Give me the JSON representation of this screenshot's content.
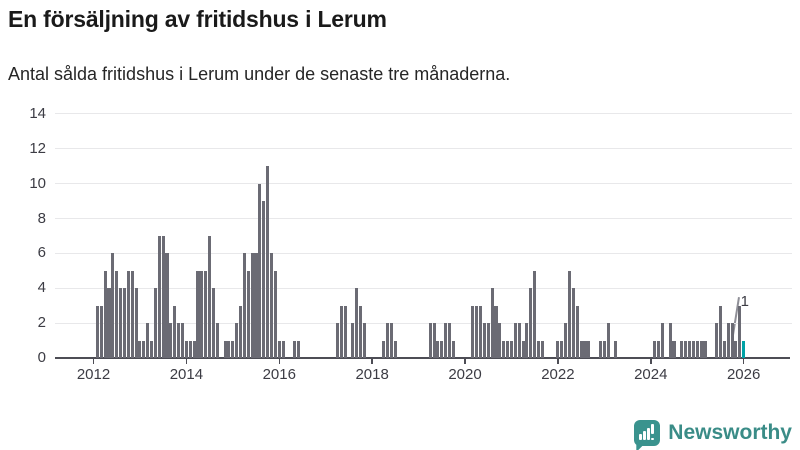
{
  "header": {
    "title": "En försäljning av fritidshus i Lerum",
    "subtitle": "Antal sålda fritidshus i Lerum under de senaste tre månaderna."
  },
  "chart_data": {
    "type": "bar",
    "title": "En försäljning av fritidshus i Lerum",
    "subtitle": "Antal sålda fritidshus i Lerum under de senaste tre månaderna.",
    "frequency": "monthly",
    "start": "2012-01",
    "values": [
      0,
      3,
      3,
      5,
      4,
      6,
      5,
      4,
      4,
      5,
      5,
      4,
      1,
      1,
      2,
      1,
      4,
      7,
      7,
      6,
      2,
      3,
      2,
      2,
      1,
      1,
      1,
      5,
      5,
      5,
      7,
      4,
      2,
      0,
      1,
      1,
      1,
      2,
      3,
      6,
      5,
      6,
      6,
      10,
      9,
      11,
      6,
      5,
      1,
      1,
      0,
      0,
      1,
      1,
      0,
      0,
      0,
      0,
      0,
      0,
      0,
      0,
      0,
      2,
      3,
      3,
      0,
      2,
      4,
      3,
      2,
      0,
      0,
      0,
      0,
      1,
      2,
      2,
      1,
      0,
      0,
      0,
      0,
      0,
      0,
      0,
      0,
      2,
      2,
      1,
      1,
      2,
      2,
      1,
      0,
      0,
      0,
      0,
      3,
      3,
      3,
      2,
      2,
      4,
      3,
      2,
      1,
      1,
      1,
      2,
      2,
      1,
      2,
      4,
      5,
      1,
      1,
      0,
      0,
      0,
      1,
      1,
      2,
      5,
      4,
      3,
      1,
      1,
      1,
      0,
      0,
      1,
      1,
      2,
      0,
      1,
      0,
      0,
      0,
      0,
      0,
      0,
      0,
      0,
      0,
      1,
      1,
      2,
      0,
      2,
      1,
      0,
      1,
      1,
      1,
      1,
      1,
      1,
      1,
      0,
      0,
      2,
      3,
      1,
      2,
      2,
      1,
      3,
      1
    ],
    "highlight_index": 168,
    "yticks": [
      0,
      2,
      4,
      6,
      8,
      10,
      12,
      14
    ],
    "xticks": [
      2012,
      2014,
      2016,
      2018,
      2020,
      2022,
      2024,
      2026
    ],
    "ylim": [
      0,
      14
    ],
    "grid": "horizontal",
    "legend": "none",
    "xlabel": "",
    "ylabel": "",
    "bar_color": "#6b6b74",
    "highlight_color": "#00a2a6",
    "annotation": {
      "text": "1"
    }
  },
  "footer": {
    "brand": "Newsworthy",
    "brand_color": "#3a8c87",
    "logo_icon": "newsworthy-bubble-chart-icon"
  }
}
